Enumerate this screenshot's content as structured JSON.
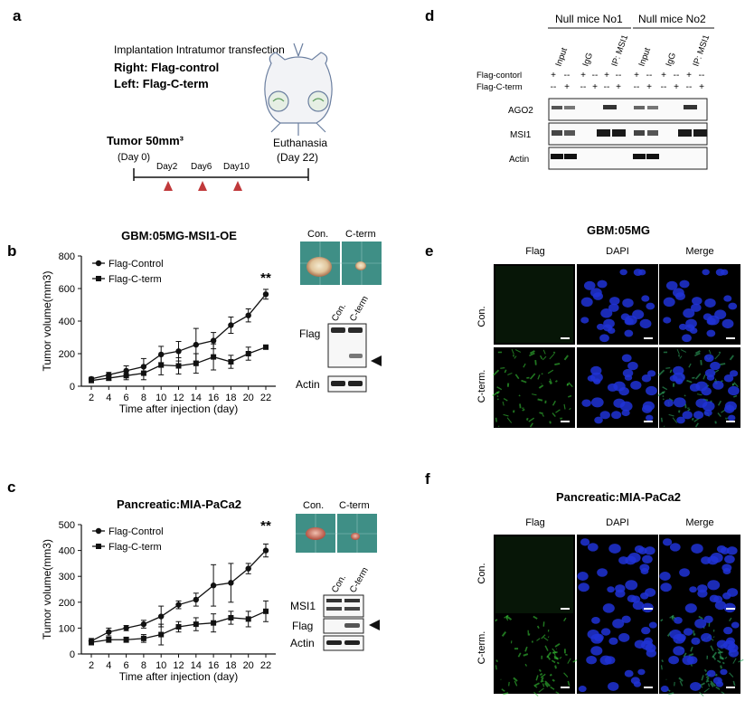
{
  "panels": {
    "a": {
      "letter": "a",
      "heading": "Implantation Intratumor transfection",
      "right_label": "Right: Flag-control",
      "left_label": "Left: Flag-C-term",
      "tumor_label": "Tumor 50mm³",
      "day0": "(Day 0)",
      "timeline": [
        "Day2",
        "Day6",
        "Day10"
      ],
      "euthanasia": "Euthanasia",
      "day22": "(Day 22)"
    },
    "b": {
      "letter": "b",
      "blot_labels": [
        "Flag",
        "Actin"
      ],
      "tumor_labels": [
        "Con.",
        "C-term"
      ],
      "lane_labels": [
        "Con.",
        "C-term"
      ]
    },
    "c": {
      "letter": "c",
      "blot_labels": [
        "MSI1",
        "Flag",
        "Actin"
      ],
      "tumor_labels": [
        "Con.",
        "C-term"
      ],
      "lane_labels": [
        "Con.",
        "C-term"
      ]
    },
    "d": {
      "letter": "d",
      "groups": [
        "Null mice No1",
        "Null mice No2"
      ],
      "lanes": [
        "Input",
        "IgG",
        "IP: MSI1",
        "Input",
        "IgG",
        "IP: MSI1"
      ],
      "row_labels": [
        "Flag-contorl",
        "Flag-C-term"
      ],
      "row1_signs": [
        "+",
        "--",
        "+",
        "--",
        "+",
        "--",
        "+",
        "--",
        "+",
        "--",
        "+",
        "--"
      ],
      "row2_signs": [
        "--",
        "+",
        "--",
        "+",
        "--",
        "+",
        "--",
        "+",
        "--",
        "+",
        "--",
        "+"
      ],
      "blot_labels": [
        "AGO2",
        "MSI1",
        "Actin"
      ]
    },
    "e": {
      "letter": "e",
      "title": "GBM:05MG",
      "columns": [
        "Flag",
        "DAPI",
        "Merge"
      ],
      "rows": [
        "Con.",
        "C-term."
      ]
    },
    "f": {
      "letter": "f",
      "title": "Pancreatic:MIA-PaCa2",
      "columns": [
        "Flag",
        "DAPI",
        "Merge"
      ],
      "rows": [
        "Con.",
        "C-term."
      ]
    }
  },
  "chart_data": [
    {
      "type": "line",
      "title": "GBM:05MG-MSI1-OE",
      "xlabel": "Time after injection (day)",
      "ylabel": "Tumor volume(mm3)",
      "x": [
        2,
        4,
        6,
        8,
        10,
        12,
        14,
        16,
        18,
        20,
        22
      ],
      "xlim": [
        2,
        22
      ],
      "ylim": [
        0,
        800
      ],
      "yticks": [
        0,
        200,
        400,
        600,
        800
      ],
      "significance": "**",
      "series": [
        {
          "name": "Flag-Control",
          "marker": "circle",
          "values": [
            45,
            70,
            95,
            120,
            195,
            215,
            255,
            280,
            375,
            435,
            565
          ],
          "errors": [
            10,
            15,
            30,
            50,
            50,
            60,
            100,
            50,
            50,
            40,
            30
          ]
        },
        {
          "name": "Flag-C-term",
          "marker": "square",
          "values": [
            35,
            50,
            65,
            80,
            130,
            125,
            140,
            180,
            150,
            200,
            240
          ],
          "errors": [
            10,
            15,
            25,
            40,
            60,
            50,
            60,
            80,
            40,
            40,
            10
          ]
        }
      ]
    },
    {
      "type": "line",
      "title": "Pancreatic:MIA-PaCa2",
      "xlabel": "Time after injection (day)",
      "ylabel": "Tumor volume(mm3)",
      "x": [
        2,
        4,
        6,
        8,
        10,
        12,
        14,
        16,
        18,
        20,
        22
      ],
      "xlim": [
        2,
        22
      ],
      "ylim": [
        0,
        500
      ],
      "yticks": [
        0,
        100,
        200,
        300,
        400,
        500
      ],
      "significance": "**",
      "series": [
        {
          "name": "Flag-Control",
          "marker": "circle",
          "values": [
            50,
            85,
            100,
            115,
            145,
            190,
            210,
            265,
            275,
            330,
            400
          ],
          "errors": [
            10,
            15,
            10,
            15,
            40,
            15,
            25,
            80,
            75,
            20,
            25
          ]
        },
        {
          "name": "Flag-C-term",
          "marker": "square",
          "values": [
            45,
            55,
            55,
            60,
            75,
            105,
            115,
            120,
            140,
            135,
            165
          ],
          "errors": [
            10,
            10,
            10,
            15,
            40,
            20,
            25,
            35,
            25,
            30,
            40
          ]
        }
      ]
    }
  ]
}
